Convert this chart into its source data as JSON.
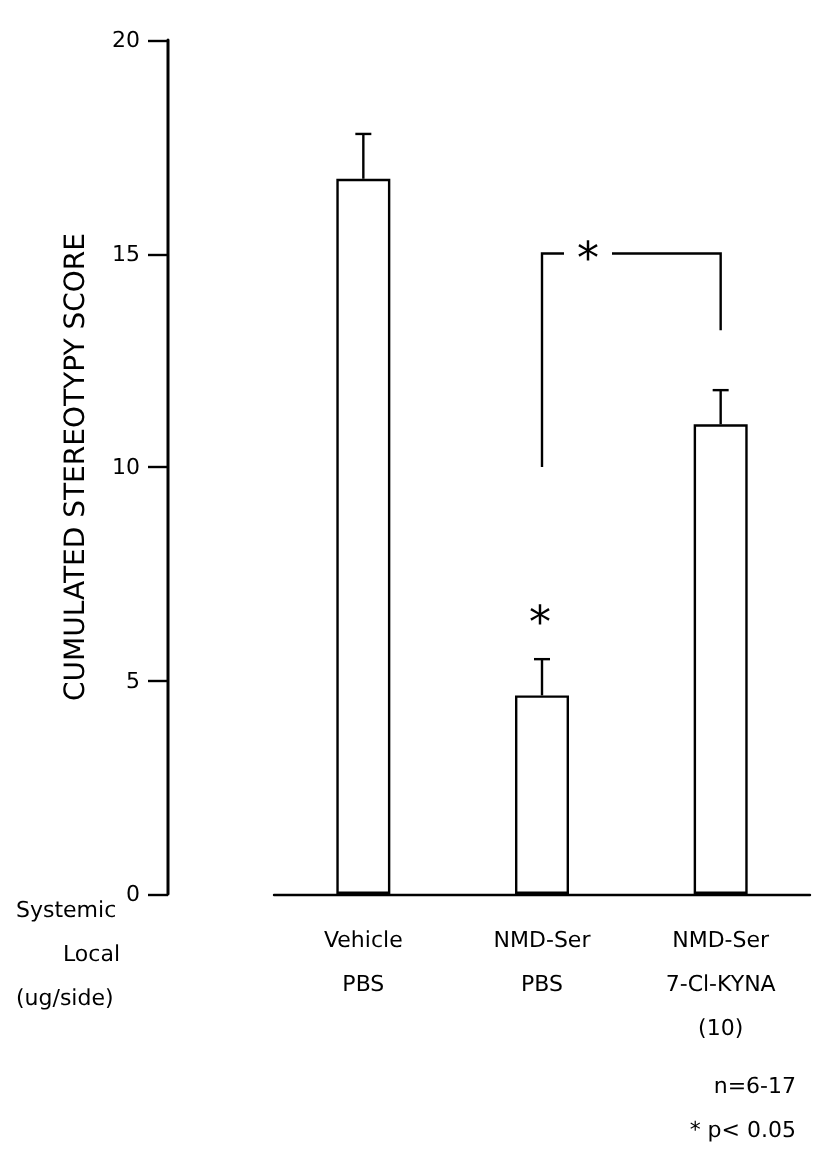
{
  "chart_data": {
    "type": "bar",
    "ylabel": "CUMULATED STEREOTYPY SCORE",
    "categories": [
      "Vehicle\nPBS",
      "NMD-Ser\nPBS",
      "NMD-Ser\n7-Cl-KYNA\n(10)"
    ],
    "values": [
      16.75,
      4.65,
      11.0
    ],
    "errors": [
      [
        16.75,
        17.8
      ],
      [
        4.65,
        5.5
      ],
      [
        11.0,
        11.8
      ]
    ],
    "color": "#ffffff",
    "ylim": [
      0,
      20
    ],
    "yticks": [
      0,
      5,
      10,
      15,
      20
    ],
    "grid": false,
    "annotations": [
      "Systemic",
      "Local",
      "(ug/side)",
      "*",
      "*",
      "n=6-17",
      "* p< 0.05"
    ]
  }
}
